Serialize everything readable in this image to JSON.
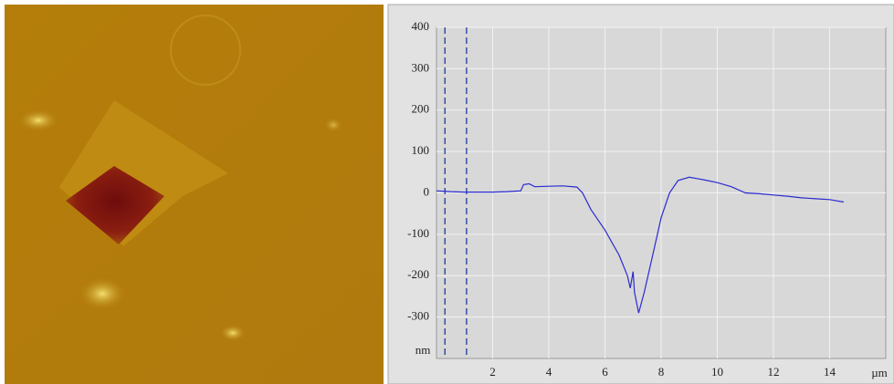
{
  "chart_data": {
    "type": "line",
    "x_label": "µm",
    "y_label": "nm",
    "x": [
      0,
      0.5,
      1,
      1.5,
      2,
      2.5,
      3,
      3.1,
      3.3,
      3.5,
      4,
      4.5,
      5,
      5.2,
      5.5,
      6,
      6.5,
      6.8,
      6.9,
      7.0,
      7.05,
      7.2,
      7.4,
      7.7,
      8,
      8.3,
      8.6,
      9,
      9.5,
      10,
      10.5,
      11,
      11.5,
      12,
      12.5,
      13,
      13.5,
      14,
      14.5
    ],
    "values": [
      5,
      3,
      2,
      2,
      2,
      3,
      5,
      20,
      22,
      15,
      16,
      17,
      14,
      0,
      -40,
      -90,
      -150,
      -200,
      -230,
      -190,
      -240,
      -290,
      -240,
      -150,
      -60,
      0,
      30,
      38,
      32,
      25,
      15,
      0,
      -2,
      -5,
      -8,
      -12,
      -14,
      -16,
      -22
    ],
    "color": "#2a2ad0",
    "cursors": [
      0.3,
      1.07
    ],
    "cursor_color": "#1a3aa0",
    "xlim": [
      0,
      16
    ],
    "ylim": [
      -400,
      400
    ],
    "xticks": [
      2,
      4,
      6,
      8,
      10,
      12,
      14
    ],
    "yticks": [
      -300,
      -200,
      -100,
      0,
      100,
      200,
      300,
      400
    ],
    "grid": true
  }
}
